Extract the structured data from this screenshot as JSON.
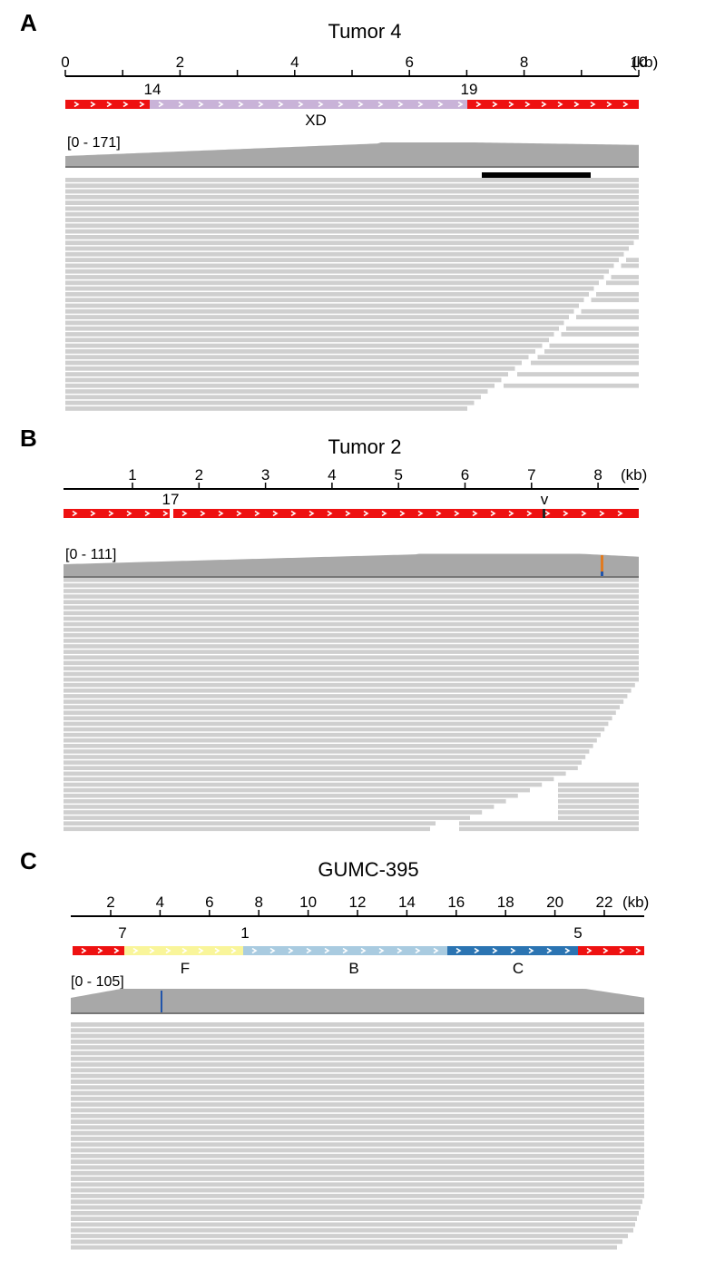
{
  "panels": [
    {
      "letter": "A",
      "title": "Tumor 4",
      "axis": {
        "unit": "(kb)",
        "ticks": [
          0,
          1,
          2,
          3,
          4,
          5,
          6,
          7,
          8,
          9,
          10
        ],
        "labels": [
          {
            "v": 0,
            "t": "0"
          },
          {
            "v": 2,
            "t": "2"
          },
          {
            "v": 4,
            "t": "4"
          },
          {
            "v": 6,
            "t": "6"
          },
          {
            "v": 8,
            "t": "8"
          },
          {
            "v": 10,
            "t": "10"
          }
        ]
      },
      "junction_labels": [
        "14",
        "19"
      ],
      "segment_labels": [
        "XD"
      ],
      "coverage_range": "[0 - 171]"
    },
    {
      "letter": "B",
      "title": "Tumor 2",
      "axis": {
        "unit": "(kb)",
        "ticks": [
          1,
          2,
          3,
          4,
          5,
          6,
          7,
          8
        ],
        "labels": [
          {
            "v": 1,
            "t": "1"
          },
          {
            "v": 2,
            "t": "2"
          },
          {
            "v": 3,
            "t": "3"
          },
          {
            "v": 4,
            "t": "4"
          },
          {
            "v": 5,
            "t": "5"
          },
          {
            "v": 6,
            "t": "6"
          },
          {
            "v": 7,
            "t": "7"
          },
          {
            "v": 8,
            "t": "8"
          }
        ]
      },
      "junction_labels": [
        "17",
        "v"
      ],
      "segment_labels": [],
      "coverage_range": "[0 - 111]"
    },
    {
      "letter": "C",
      "title": "GUMC-395",
      "axis": {
        "unit": "(kb)",
        "ticks": [
          2,
          4,
          6,
          8,
          10,
          12,
          14,
          16,
          18,
          20,
          22
        ],
        "labels": [
          {
            "v": 2,
            "t": "2"
          },
          {
            "v": 4,
            "t": "4"
          },
          {
            "v": 6,
            "t": "6"
          },
          {
            "v": 8,
            "t": "8"
          },
          {
            "v": 10,
            "t": "10"
          },
          {
            "v": 12,
            "t": "12"
          },
          {
            "v": 14,
            "t": "14"
          },
          {
            "v": 16,
            "t": "16"
          },
          {
            "v": 18,
            "t": "18"
          },
          {
            "v": 20,
            "t": "20"
          },
          {
            "v": 22,
            "t": "22"
          }
        ]
      },
      "junction_labels": [
        "7",
        "1",
        "5"
      ],
      "segment_labels": [
        "F",
        "B",
        "C"
      ],
      "coverage_range": "[0 - 105]"
    }
  ],
  "colors": {
    "exon_red": "#ee1111",
    "xd_lavender": "#c9b3d8",
    "f_yellow": "#f9f59a",
    "b_lightblue": "#a9cbe0",
    "c_blue": "#2b74b2",
    "coverage_gray": "#a8a8a8",
    "read_gray": "#cfcfcf",
    "deletion_black": "#000000",
    "snv_orange": "#e07b22",
    "snv_blue": "#2255aa"
  }
}
